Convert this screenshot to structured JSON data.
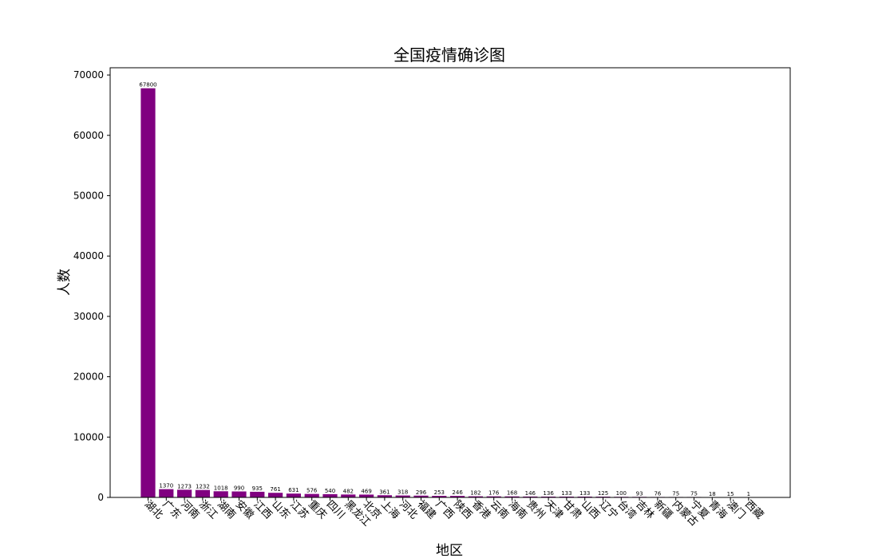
{
  "chart_data": {
    "type": "bar",
    "title": "全国疫情确诊图",
    "xlabel": "地区",
    "ylabel": "人数",
    "ylim": [
      0,
      71200
    ],
    "yticks": [
      0,
      10000,
      20000,
      30000,
      40000,
      50000,
      60000,
      70000
    ],
    "tick_labels": [
      "0",
      "10000",
      "20000",
      "30000",
      "40000",
      "50000",
      "60000",
      "70000"
    ],
    "bar_color": "#800080",
    "grid": false,
    "categories": [
      "湖北",
      "广东",
      "河南",
      "浙江",
      "湖南",
      "安徽",
      "江西",
      "山东",
      "江苏",
      "重庆",
      "四川",
      "黑龙江",
      "北京",
      "上海",
      "河北",
      "福建",
      "广西",
      "陕西",
      "香港",
      "云南",
      "海南",
      "贵州",
      "天津",
      "甘肃",
      "山西",
      "辽宁",
      "台湾",
      "吉林",
      "新疆",
      "内蒙古",
      "宁夏",
      "青海",
      "澳门",
      "西藏"
    ],
    "values": [
      67800,
      1370,
      1273,
      1232,
      1018,
      990,
      935,
      761,
      631,
      576,
      540,
      482,
      469,
      361,
      318,
      296,
      253,
      246,
      182,
      176,
      168,
      146,
      136,
      133,
      133,
      125,
      100,
      93,
      76,
      75,
      75,
      18,
      15,
      1
    ],
    "value_labels": [
      "67800",
      "1370",
      "1273",
      "1232",
      "1018",
      "990",
      "935",
      "761",
      "631",
      "576",
      "540",
      "482",
      "469",
      "361",
      "318",
      "296",
      "253",
      "246",
      "182",
      "176",
      "168",
      "146",
      "136",
      "133",
      "133",
      "125",
      "100",
      "93",
      "76",
      "75",
      "75",
      "18",
      "15",
      "1"
    ]
  }
}
